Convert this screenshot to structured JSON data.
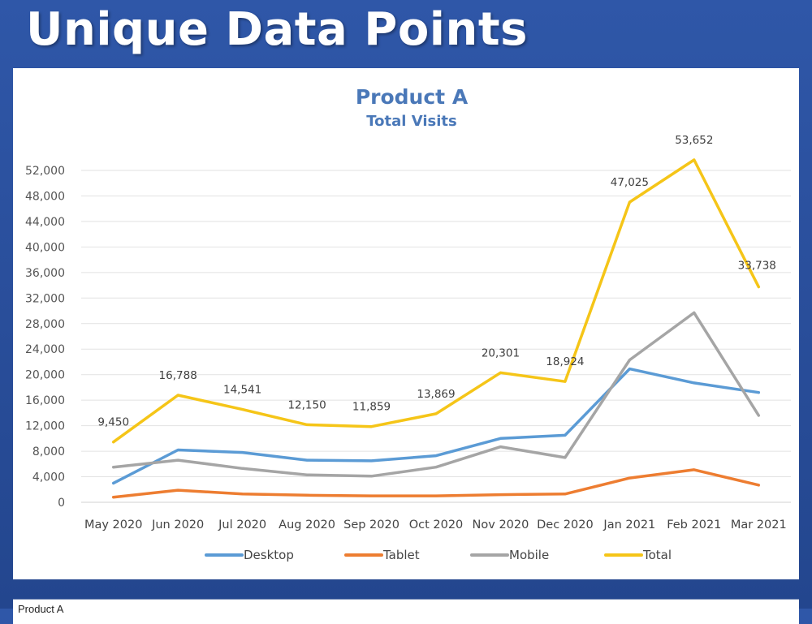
{
  "slide": {
    "title": "Unique Data Points"
  },
  "table_stub": {
    "label": "Product A"
  },
  "colors": {
    "Desktop": "#5b9bd5",
    "Tablet": "#ed7d31",
    "Mobile": "#a5a5a5",
    "Total": "#f5c518"
  },
  "chart_data": {
    "type": "line",
    "title": "Product A",
    "subtitle": "Total Visits",
    "categories": [
      "May 2020",
      "Jun 2020",
      "Jul 2020",
      "Aug 2020",
      "Sep 2020",
      "Oct 2020",
      "Nov 2020",
      "Dec 2020",
      "Jan 2021",
      "Feb 2021",
      "Mar 2021"
    ],
    "ylim": [
      0,
      52000
    ],
    "yticks": [
      "0",
      "4,000",
      "8,000",
      "12,000",
      "16,000",
      "20,000",
      "24,000",
      "28,000",
      "32,000",
      "36,000",
      "40,000",
      "44,000",
      "48,000",
      "52,000"
    ],
    "grid": true,
    "legend": "bottom",
    "series": [
      {
        "name": "Desktop",
        "values": [
          3000,
          8200,
          7800,
          6600,
          6500,
          7300,
          10000,
          10500,
          20900,
          18700,
          17200
        ]
      },
      {
        "name": "Tablet",
        "values": [
          800,
          1900,
          1300,
          1100,
          1000,
          1000,
          1200,
          1300,
          3800,
          5100,
          2700
        ]
      },
      {
        "name": "Mobile",
        "values": [
          5500,
          6600,
          5300,
          4300,
          4100,
          5500,
          8700,
          7000,
          22300,
          29700,
          13600
        ]
      },
      {
        "name": "Total",
        "values": [
          9450,
          16788,
          14541,
          12150,
          11859,
          13869,
          20301,
          18924,
          47025,
          53652,
          33738
        ],
        "labels": [
          "9,450",
          "16,788",
          "14,541",
          "12,150",
          "11,859",
          "13,869",
          "20,301",
          "18,924",
          "47,025",
          "53,652",
          "33,738"
        ]
      }
    ]
  }
}
